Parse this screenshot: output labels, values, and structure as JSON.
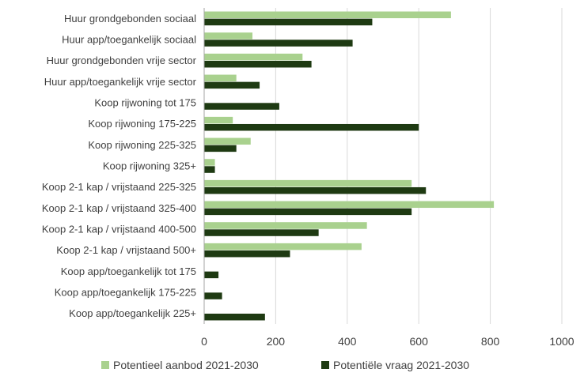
{
  "chart_data": {
    "type": "bar",
    "orientation": "horizontal",
    "categories": [
      "Huur grondgebonden sociaal",
      "Huur app/toegankelijk sociaal",
      "Huur grondgebonden vrije sector",
      "Huur app/toegankelijk vrije sector",
      "Koop rijwoning tot 175",
      "Koop rijwoning 175-225",
      "Koop rijwoning 225-325",
      "Koop rijwoning 325+",
      "Koop 2-1 kap / vrijstaand 225-325",
      "Koop 2-1 kap / vrijstaand 325-400",
      "Koop 2-1 kap / vrijstaand 400-500",
      "Koop 2-1 kap / vrijstaand 500+",
      "Koop app/toegankelijk tot 175",
      "Koop app/toegankelijk 175-225",
      "Koop app/toegankelijk 225+"
    ],
    "series": [
      {
        "name": "Potentieel aanbod 2021-2030",
        "color": "#a9d18e",
        "values": [
          690,
          135,
          275,
          90,
          0,
          80,
          130,
          30,
          580,
          810,
          455,
          440,
          0,
          0,
          0
        ]
      },
      {
        "name": "Potentiële vraag 2021-2030",
        "color": "#1e3a12",
        "values": [
          470,
          415,
          300,
          155,
          210,
          600,
          90,
          30,
          620,
          580,
          320,
          240,
          40,
          50,
          170
        ]
      }
    ],
    "xticks": [
      "0",
      "200",
      "400",
      "600",
      "800",
      "1000"
    ],
    "xlim": [
      0,
      1000
    ],
    "title": "",
    "xlabel": "",
    "ylabel": "",
    "grid": "vertical",
    "legend_position": "bottom"
  }
}
